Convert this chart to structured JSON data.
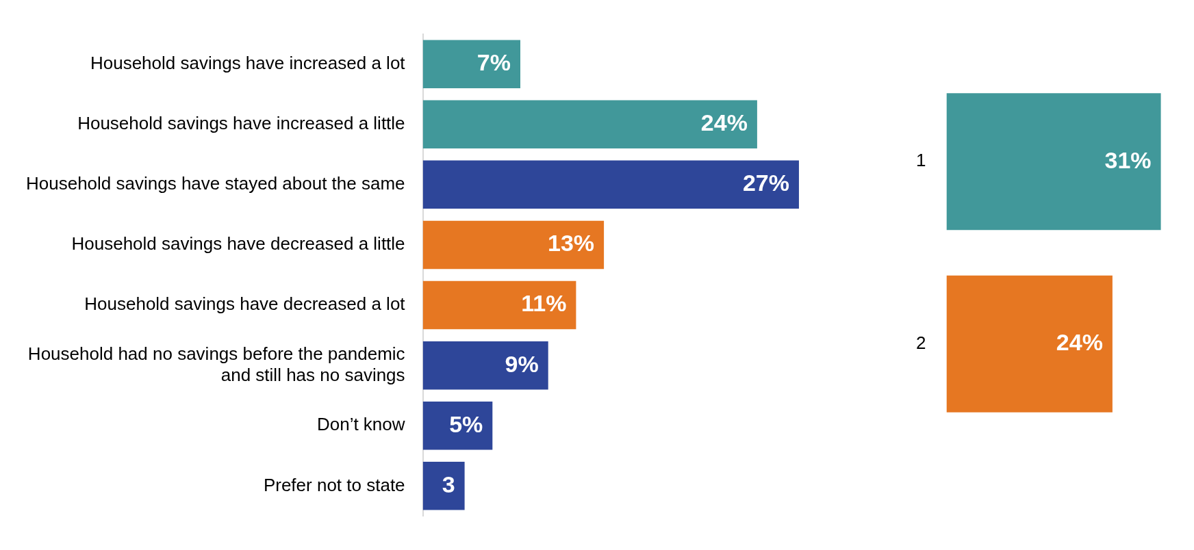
{
  "chart_data": [
    {
      "type": "bar",
      "orientation": "horizontal",
      "categories": [
        "Household savings have increased a lot",
        "Household savings have increased a little",
        "Household savings have stayed about the same",
        "Household savings have decreased a little",
        "Household savings have decreased a lot",
        "Household had no savings before the pandemic and still has no savings",
        "Don’t know",
        "Prefer not to state"
      ],
      "values": [
        7,
        24,
        27,
        13,
        11,
        9,
        5,
        3
      ],
      "colors": [
        "#41989a",
        "#41989a",
        "#2e4699",
        "#e67722",
        "#e67722",
        "#2e4699",
        "#2e4699",
        "#2e4699"
      ],
      "value_labels": [
        "7%",
        "24%",
        "27%",
        "13%",
        "11%",
        "9%",
        "5%",
        "3"
      ]
    },
    {
      "type": "bar",
      "orientation": "horizontal",
      "categories": [
        "1",
        "2"
      ],
      "values": [
        31,
        24
      ],
      "colors": [
        "#41989a",
        "#e67722"
      ],
      "value_labels": [
        "31%",
        "24%"
      ]
    }
  ]
}
